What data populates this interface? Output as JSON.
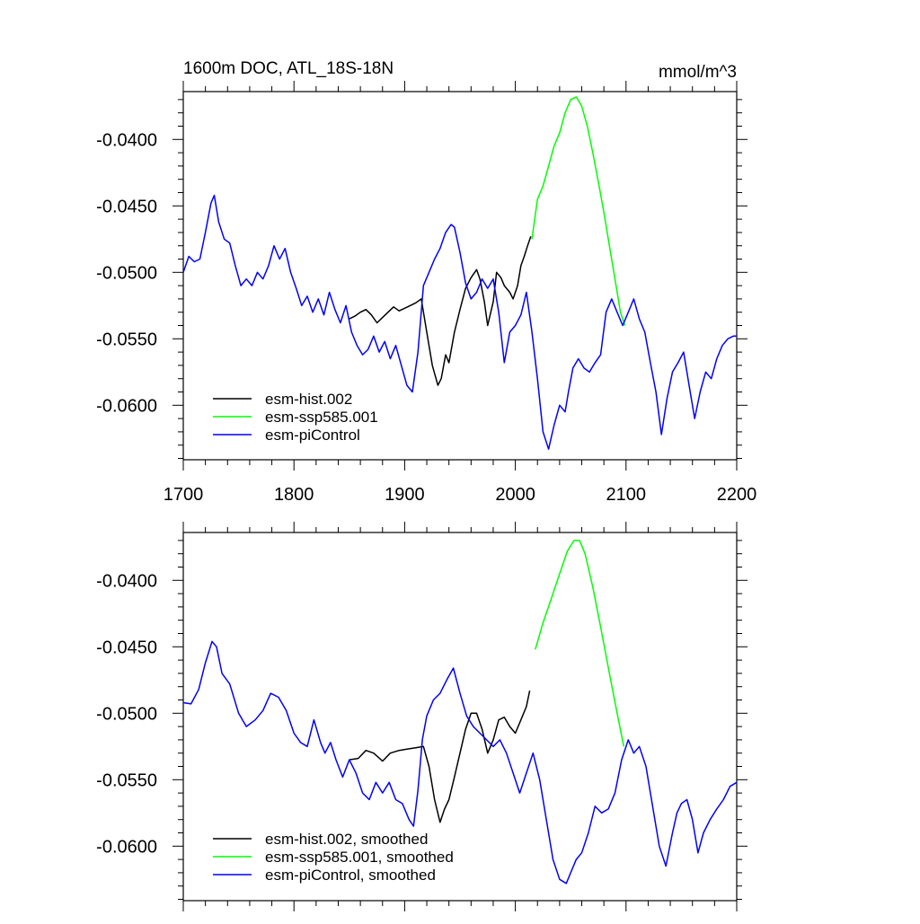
{
  "chart_data": [
    {
      "type": "line",
      "title": "1600m DOC, ATL_18S-18N",
      "units": "mmol/m^3",
      "xlim": [
        1700,
        2200
      ],
      "ylim": [
        -0.0641,
        -0.0364
      ],
      "x_ticks": [
        "1700",
        "1800",
        "1900",
        "2000",
        "2100",
        "2200"
      ],
      "y_ticks": [
        {
          "value": -0.04,
          "label": "-0.0400"
        },
        {
          "value": -0.045,
          "label": "-0.0450"
        },
        {
          "value": -0.05,
          "label": "-0.0500"
        },
        {
          "value": -0.055,
          "label": "-0.0550"
        },
        {
          "value": -0.06,
          "label": "-0.0600"
        }
      ],
      "show_x_tick_labels": true,
      "legend_position": "bottom-left",
      "series": [
        {
          "name": "esm-hist.002",
          "color": "#000000",
          "x": [
            1850,
            1855,
            1860,
            1865,
            1870,
            1875,
            1880,
            1885,
            1890,
            1895,
            1900,
            1905,
            1910,
            1915,
            1920,
            1925,
            1930,
            1933,
            1937,
            1940,
            1945,
            1950,
            1955,
            1960,
            1965,
            1968,
            1972,
            1975,
            1980,
            1983,
            1987,
            1990,
            1995,
            1998,
            2002,
            2005,
            2008,
            2011,
            2014
          ],
          "y": [
            -0.0535,
            -0.0533,
            -0.053,
            -0.0528,
            -0.0532,
            -0.0538,
            -0.0534,
            -0.053,
            -0.0526,
            -0.0529,
            -0.0527,
            -0.0525,
            -0.0523,
            -0.052,
            -0.0545,
            -0.057,
            -0.0585,
            -0.058,
            -0.0562,
            -0.0568,
            -0.0545,
            -0.0528,
            -0.0512,
            -0.0504,
            -0.0498,
            -0.0505,
            -0.0522,
            -0.054,
            -0.0522,
            -0.05,
            -0.0504,
            -0.051,
            -0.0515,
            -0.052,
            -0.051,
            -0.0495,
            -0.0488,
            -0.048,
            -0.0473
          ]
        },
        {
          "name": "esm-ssp585.001",
          "color": "#00ff00",
          "x": [
            2015,
            2020,
            2025,
            2030,
            2035,
            2040,
            2045,
            2050,
            2055,
            2060,
            2065,
            2070,
            2075,
            2080,
            2085,
            2090,
            2095,
            2099
          ],
          "y": [
            -0.0475,
            -0.0445,
            -0.0435,
            -0.042,
            -0.0405,
            -0.0395,
            -0.038,
            -0.037,
            -0.0368,
            -0.0375,
            -0.039,
            -0.041,
            -0.0432,
            -0.0455,
            -0.048,
            -0.0505,
            -0.053,
            -0.054
          ]
        },
        {
          "name": "esm-piControl",
          "color": "#0000ff",
          "x": [
            1700,
            1705,
            1710,
            1715,
            1720,
            1725,
            1728,
            1732,
            1737,
            1742,
            1747,
            1752,
            1757,
            1762,
            1767,
            1772,
            1777,
            1782,
            1787,
            1792,
            1797,
            1802,
            1807,
            1812,
            1817,
            1822,
            1827,
            1832,
            1837,
            1842,
            1847,
            1852,
            1857,
            1862,
            1867,
            1872,
            1877,
            1882,
            1887,
            1892,
            1897,
            1902,
            1907,
            1912,
            1917,
            1922,
            1927,
            1932,
            1937,
            1942,
            1945,
            1950,
            1955,
            1960,
            1965,
            1970,
            1975,
            1980,
            1985,
            1990,
            1995,
            2000,
            2005,
            2010,
            2015,
            2020,
            2025,
            2030,
            2035,
            2040,
            2045,
            2048,
            2052,
            2057,
            2062,
            2067,
            2072,
            2077,
            2082,
            2087,
            2092,
            2097,
            2102,
            2107,
            2112,
            2117,
            2122,
            2127,
            2132,
            2137,
            2142,
            2147,
            2152,
            2157,
            2162,
            2167,
            2172,
            2177,
            2182,
            2187,
            2192,
            2197,
            2200
          ],
          "y": [
            -0.05,
            -0.0488,
            -0.0492,
            -0.049,
            -0.047,
            -0.0448,
            -0.0442,
            -0.0462,
            -0.0475,
            -0.0478,
            -0.0495,
            -0.051,
            -0.0505,
            -0.051,
            -0.05,
            -0.0505,
            -0.0495,
            -0.048,
            -0.049,
            -0.0482,
            -0.05,
            -0.0512,
            -0.0525,
            -0.0518,
            -0.053,
            -0.052,
            -0.0532,
            -0.0515,
            -0.0528,
            -0.0538,
            -0.0525,
            -0.0545,
            -0.0555,
            -0.0562,
            -0.0558,
            -0.0548,
            -0.056,
            -0.0552,
            -0.0565,
            -0.0555,
            -0.057,
            -0.0585,
            -0.059,
            -0.056,
            -0.051,
            -0.05,
            -0.049,
            -0.0482,
            -0.047,
            -0.0464,
            -0.0466,
            -0.0485,
            -0.0508,
            -0.052,
            -0.0515,
            -0.0505,
            -0.0512,
            -0.0505,
            -0.053,
            -0.0568,
            -0.0545,
            -0.054,
            -0.0532,
            -0.0515,
            -0.0545,
            -0.058,
            -0.062,
            -0.0633,
            -0.0615,
            -0.06,
            -0.0605,
            -0.059,
            -0.0572,
            -0.0565,
            -0.0572,
            -0.0575,
            -0.0568,
            -0.0562,
            -0.053,
            -0.052,
            -0.053,
            -0.054,
            -0.053,
            -0.052,
            -0.0535,
            -0.0545,
            -0.0568,
            -0.059,
            -0.0622,
            -0.0595,
            -0.0575,
            -0.0568,
            -0.056,
            -0.0585,
            -0.061,
            -0.059,
            -0.0575,
            -0.058,
            -0.0565,
            -0.0555,
            -0.055,
            -0.0548,
            -0.0548
          ]
        }
      ]
    },
    {
      "type": "line",
      "title": "",
      "units": "",
      "xlim": [
        1700,
        2200
      ],
      "ylim": [
        -0.0641,
        -0.0364
      ],
      "x_ticks": [],
      "y_ticks": [
        {
          "value": -0.04,
          "label": "-0.0400"
        },
        {
          "value": -0.045,
          "label": "-0.0450"
        },
        {
          "value": -0.05,
          "label": "-0.0500"
        },
        {
          "value": -0.055,
          "label": "-0.0550"
        },
        {
          "value": -0.06,
          "label": "-0.0600"
        }
      ],
      "show_x_tick_labels": false,
      "legend_position": "bottom-left",
      "series": [
        {
          "name": "esm-hist.002, smoothed",
          "color": "#000000",
          "x": [
            1850,
            1858,
            1865,
            1872,
            1880,
            1887,
            1895,
            1902,
            1910,
            1917,
            1922,
            1927,
            1932,
            1936,
            1940,
            1945,
            1950,
            1955,
            1960,
            1965,
            1970,
            1975,
            1980,
            1985,
            1990,
            1995,
            2000,
            2005,
            2010,
            2013
          ],
          "y": [
            -0.0535,
            -0.0534,
            -0.0528,
            -0.053,
            -0.0536,
            -0.053,
            -0.0528,
            -0.0527,
            -0.0526,
            -0.0525,
            -0.054,
            -0.0565,
            -0.0582,
            -0.0572,
            -0.0565,
            -0.0548,
            -0.053,
            -0.0512,
            -0.05,
            -0.05,
            -0.0512,
            -0.053,
            -0.052,
            -0.0505,
            -0.0503,
            -0.051,
            -0.0515,
            -0.0505,
            -0.0495,
            -0.0483
          ]
        },
        {
          "name": "esm-ssp585.001, smoothed",
          "color": "#00ff00",
          "x": [
            2018,
            2025,
            2032,
            2040,
            2047,
            2053,
            2058,
            2063,
            2070,
            2077,
            2085,
            2092,
            2098
          ],
          "y": [
            -0.0452,
            -0.0432,
            -0.0415,
            -0.0395,
            -0.0378,
            -0.037,
            -0.037,
            -0.038,
            -0.0405,
            -0.0435,
            -0.047,
            -0.05,
            -0.0525
          ]
        },
        {
          "name": "esm-piControl, smoothed",
          "color": "#0000ff",
          "x": [
            1700,
            1707,
            1714,
            1720,
            1726,
            1730,
            1735,
            1742,
            1750,
            1757,
            1765,
            1772,
            1779,
            1786,
            1793,
            1800,
            1806,
            1812,
            1818,
            1824,
            1828,
            1833,
            1838,
            1844,
            1850,
            1856,
            1862,
            1868,
            1874,
            1880,
            1886,
            1892,
            1898,
            1904,
            1908,
            1912,
            1916,
            1920,
            1926,
            1932,
            1938,
            1944,
            1950,
            1956,
            1962,
            1968,
            1974,
            1980,
            1986,
            1992,
            1998,
            2004,
            2010,
            2016,
            2022,
            2028,
            2034,
            2040,
            2046,
            2050,
            2055,
            2060,
            2066,
            2072,
            2078,
            2084,
            2090,
            2096,
            2102,
            2107,
            2112,
            2118,
            2124,
            2130,
            2136,
            2142,
            2146,
            2150,
            2155,
            2160,
            2165,
            2170,
            2176,
            2182,
            2188,
            2194,
            2200
          ],
          "y": [
            -0.0492,
            -0.0493,
            -0.0482,
            -0.0462,
            -0.0446,
            -0.045,
            -0.047,
            -0.0478,
            -0.05,
            -0.051,
            -0.0505,
            -0.0498,
            -0.0485,
            -0.0488,
            -0.0498,
            -0.0515,
            -0.0522,
            -0.0525,
            -0.0505,
            -0.0522,
            -0.053,
            -0.0522,
            -0.0535,
            -0.0548,
            -0.0535,
            -0.0545,
            -0.056,
            -0.0565,
            -0.0552,
            -0.056,
            -0.0552,
            -0.0565,
            -0.0568,
            -0.058,
            -0.0585,
            -0.0558,
            -0.052,
            -0.0502,
            -0.049,
            -0.0485,
            -0.0475,
            -0.0466,
            -0.0485,
            -0.0502,
            -0.051,
            -0.0515,
            -0.052,
            -0.0525,
            -0.052,
            -0.053,
            -0.0545,
            -0.056,
            -0.0545,
            -0.053,
            -0.055,
            -0.058,
            -0.061,
            -0.0625,
            -0.0628,
            -0.062,
            -0.061,
            -0.0605,
            -0.059,
            -0.057,
            -0.0575,
            -0.0572,
            -0.056,
            -0.0535,
            -0.052,
            -0.053,
            -0.0525,
            -0.054,
            -0.057,
            -0.06,
            -0.0615,
            -0.059,
            -0.0575,
            -0.0568,
            -0.0565,
            -0.058,
            -0.0605,
            -0.059,
            -0.058,
            -0.0572,
            -0.0565,
            -0.0555,
            -0.0552
          ]
        }
      ]
    }
  ]
}
